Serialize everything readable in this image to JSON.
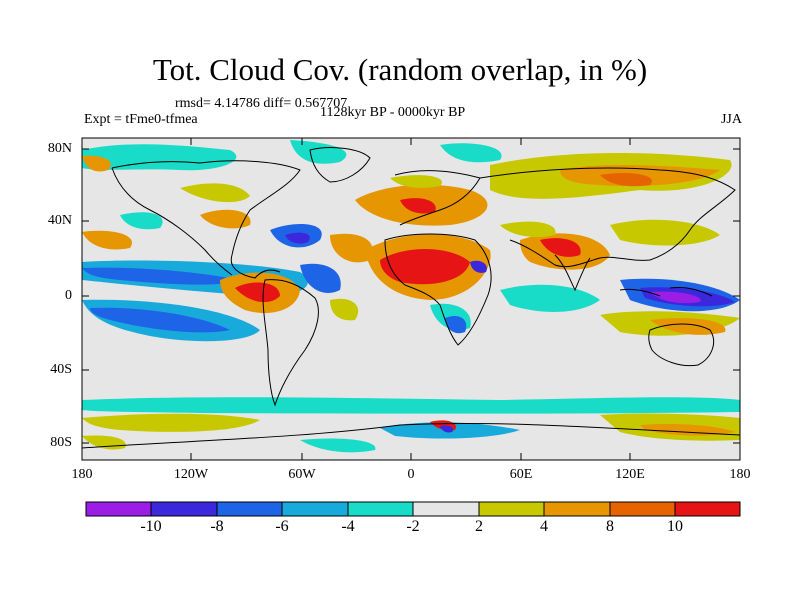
{
  "header": {
    "title": "Tot. Cloud Cov. (random overlap, in %)",
    "stats": "rmsd= 4.14786 diff= 0.567707",
    "experiment": "Expt = tFme0-tfmea",
    "period": "1128kyr BP - 0000kyr BP",
    "season": "JJA"
  },
  "axes": {
    "y_labels": [
      "80N",
      "40N",
      "0",
      "40S",
      "80S"
    ],
    "x_labels": [
      "180",
      "120W",
      "60W",
      "0",
      "60E",
      "120E",
      "180"
    ]
  },
  "colorbar": {
    "labels": [
      "-10",
      "-8",
      "-6",
      "-4",
      "-2",
      "2",
      "4",
      "8",
      "10"
    ],
    "colors": [
      "#9a1ee6",
      "#3c28dc",
      "#1e64e6",
      "#19aadc",
      "#19dcc8",
      "#e6e6e6",
      "#c8c800",
      "#e69600",
      "#e66400",
      "#e61414"
    ]
  }
}
